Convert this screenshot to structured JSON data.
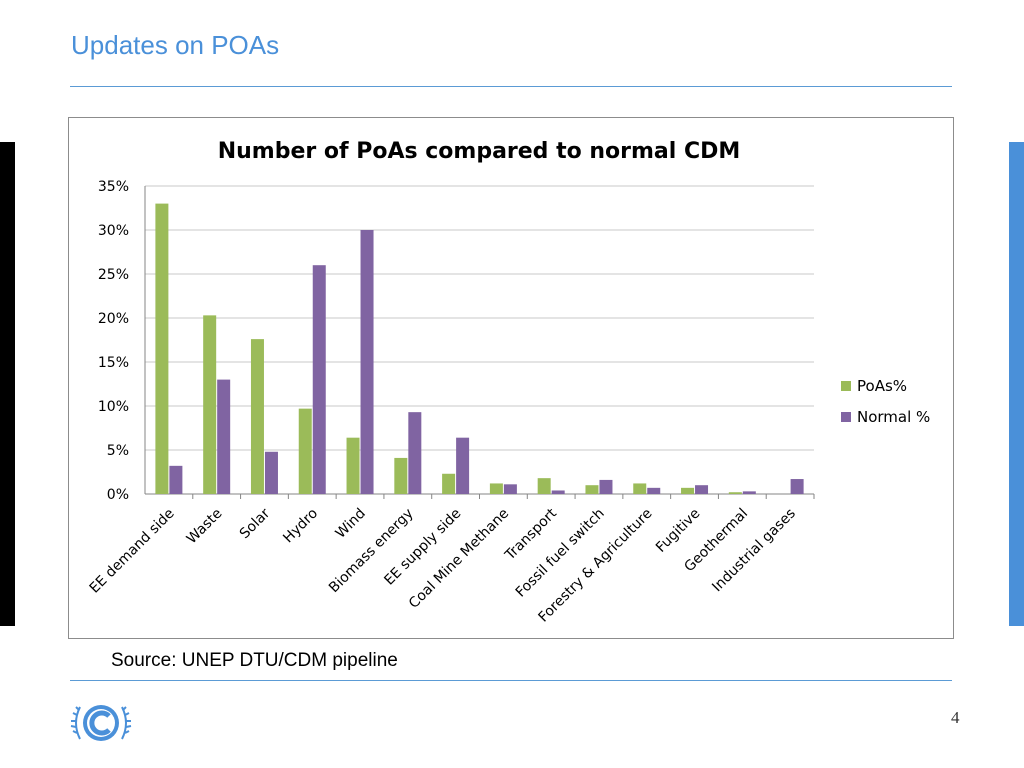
{
  "slide": {
    "title": "Updates on POAs",
    "source": "Source: UNEP DTU/CDM pipeline",
    "page_number": "4",
    "logo_name": "UNFCCC emblem"
  },
  "colors": {
    "accent": "#4a90d9",
    "poas": "#9bbb59",
    "normal": "#8064a2",
    "grid": "#c8c8c8"
  },
  "chart_data": {
    "type": "bar",
    "title": "Number of PoAs compared to normal CDM",
    "xlabel": "",
    "ylabel": "",
    "ylim": [
      0,
      35
    ],
    "yticks": [
      "0%",
      "5%",
      "10%",
      "15%",
      "20%",
      "25%",
      "30%",
      "35%"
    ],
    "ytick_values": [
      0,
      5,
      10,
      15,
      20,
      25,
      30,
      35
    ],
    "grid": true,
    "legend_position": "right",
    "categories": [
      "EE demand side",
      "Waste",
      "Solar",
      "Hydro",
      "Wind",
      "Biomass energy",
      "EE supply side",
      "Coal Mine Methane",
      "Transport",
      "Fossil fuel switch",
      "Forestry & Agriculture",
      "Fugitive",
      "Geothermal",
      "Industrial gases"
    ],
    "series": [
      {
        "name": "PoAs%",
        "color": "#9bbb59",
        "values": [
          33.0,
          20.3,
          17.6,
          9.7,
          6.4,
          4.1,
          2.3,
          1.2,
          1.8,
          1.0,
          1.2,
          0.7,
          0.2,
          0.0
        ]
      },
      {
        "name": "Normal %",
        "color": "#8064a2",
        "values": [
          3.2,
          13.0,
          4.8,
          26.0,
          30.0,
          9.3,
          6.4,
          1.1,
          0.4,
          1.6,
          0.7,
          1.0,
          0.3,
          1.7
        ]
      }
    ]
  }
}
